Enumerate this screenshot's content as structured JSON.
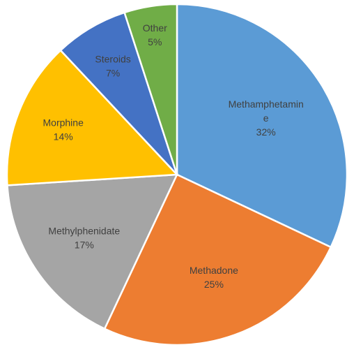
{
  "chart_data": {
    "type": "pie",
    "title": "",
    "slices": [
      {
        "label_lines": [
          "Methamphetamin",
          "e"
        ],
        "value_label": "32%",
        "value": 32,
        "color": "#5B9BD5",
        "text_color": "#404040"
      },
      {
        "label_lines": [
          "Methadone"
        ],
        "value_label": "25%",
        "value": 25,
        "color": "#ED7D31",
        "text_color": "#404040"
      },
      {
        "label_lines": [
          "Methylphenidate"
        ],
        "value_label": "17%",
        "value": 17,
        "color": "#A5A5A5",
        "text_color": "#404040"
      },
      {
        "label_lines": [
          "Morphine"
        ],
        "value_label": "14%",
        "value": 14,
        "color": "#FFC000",
        "text_color": "#404040"
      },
      {
        "label_lines": [
          "Steroids"
        ],
        "value_label": "7%",
        "value": 7,
        "color": "#4472C4",
        "text_color": "#404040"
      },
      {
        "label_lines": [
          "Other"
        ],
        "value_label": "5%",
        "value": 5,
        "color": "#70AD47",
        "text_color": "#404040"
      }
    ],
    "start": "12 o'clock",
    "direction": "clockwise",
    "legend": "none",
    "labels": "inside"
  }
}
